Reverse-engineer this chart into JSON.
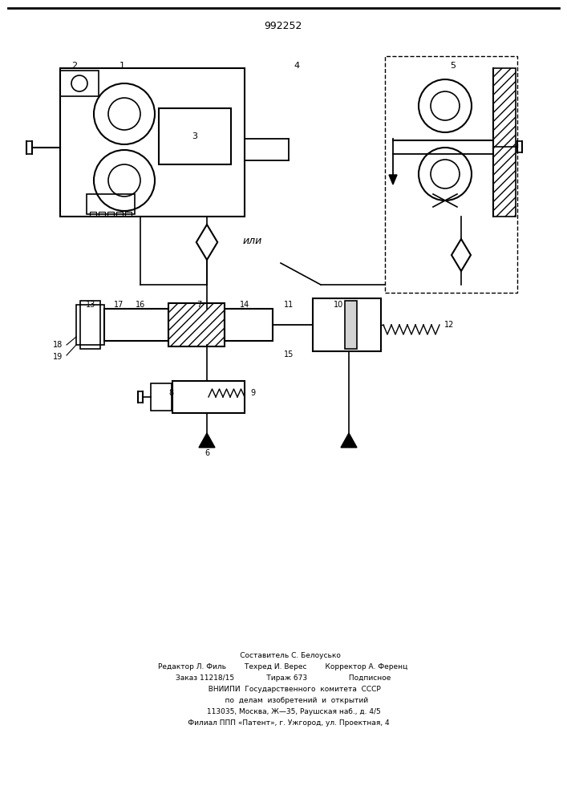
{
  "patent_number": "992252",
  "background_color": "#ffffff",
  "line_color": "#000000",
  "footer_lines": [
    "      Составитель С. Белоусько",
    "Редактор Л. Филь        Техред И. Верес        Корректор А. Ференц",
    "Заказ 11218/15              Тираж 673                  Подписное",
    "          ВНИИПИ  Государственного  комитета  СССР",
    "            по  делам  изобретений  и  открытий",
    "         113035, Москва, Ж—35, Раушская наб., д. 4/5",
    "     Филиал ППП «Патент», г. Ужгород, ул. Проектная, 4"
  ]
}
